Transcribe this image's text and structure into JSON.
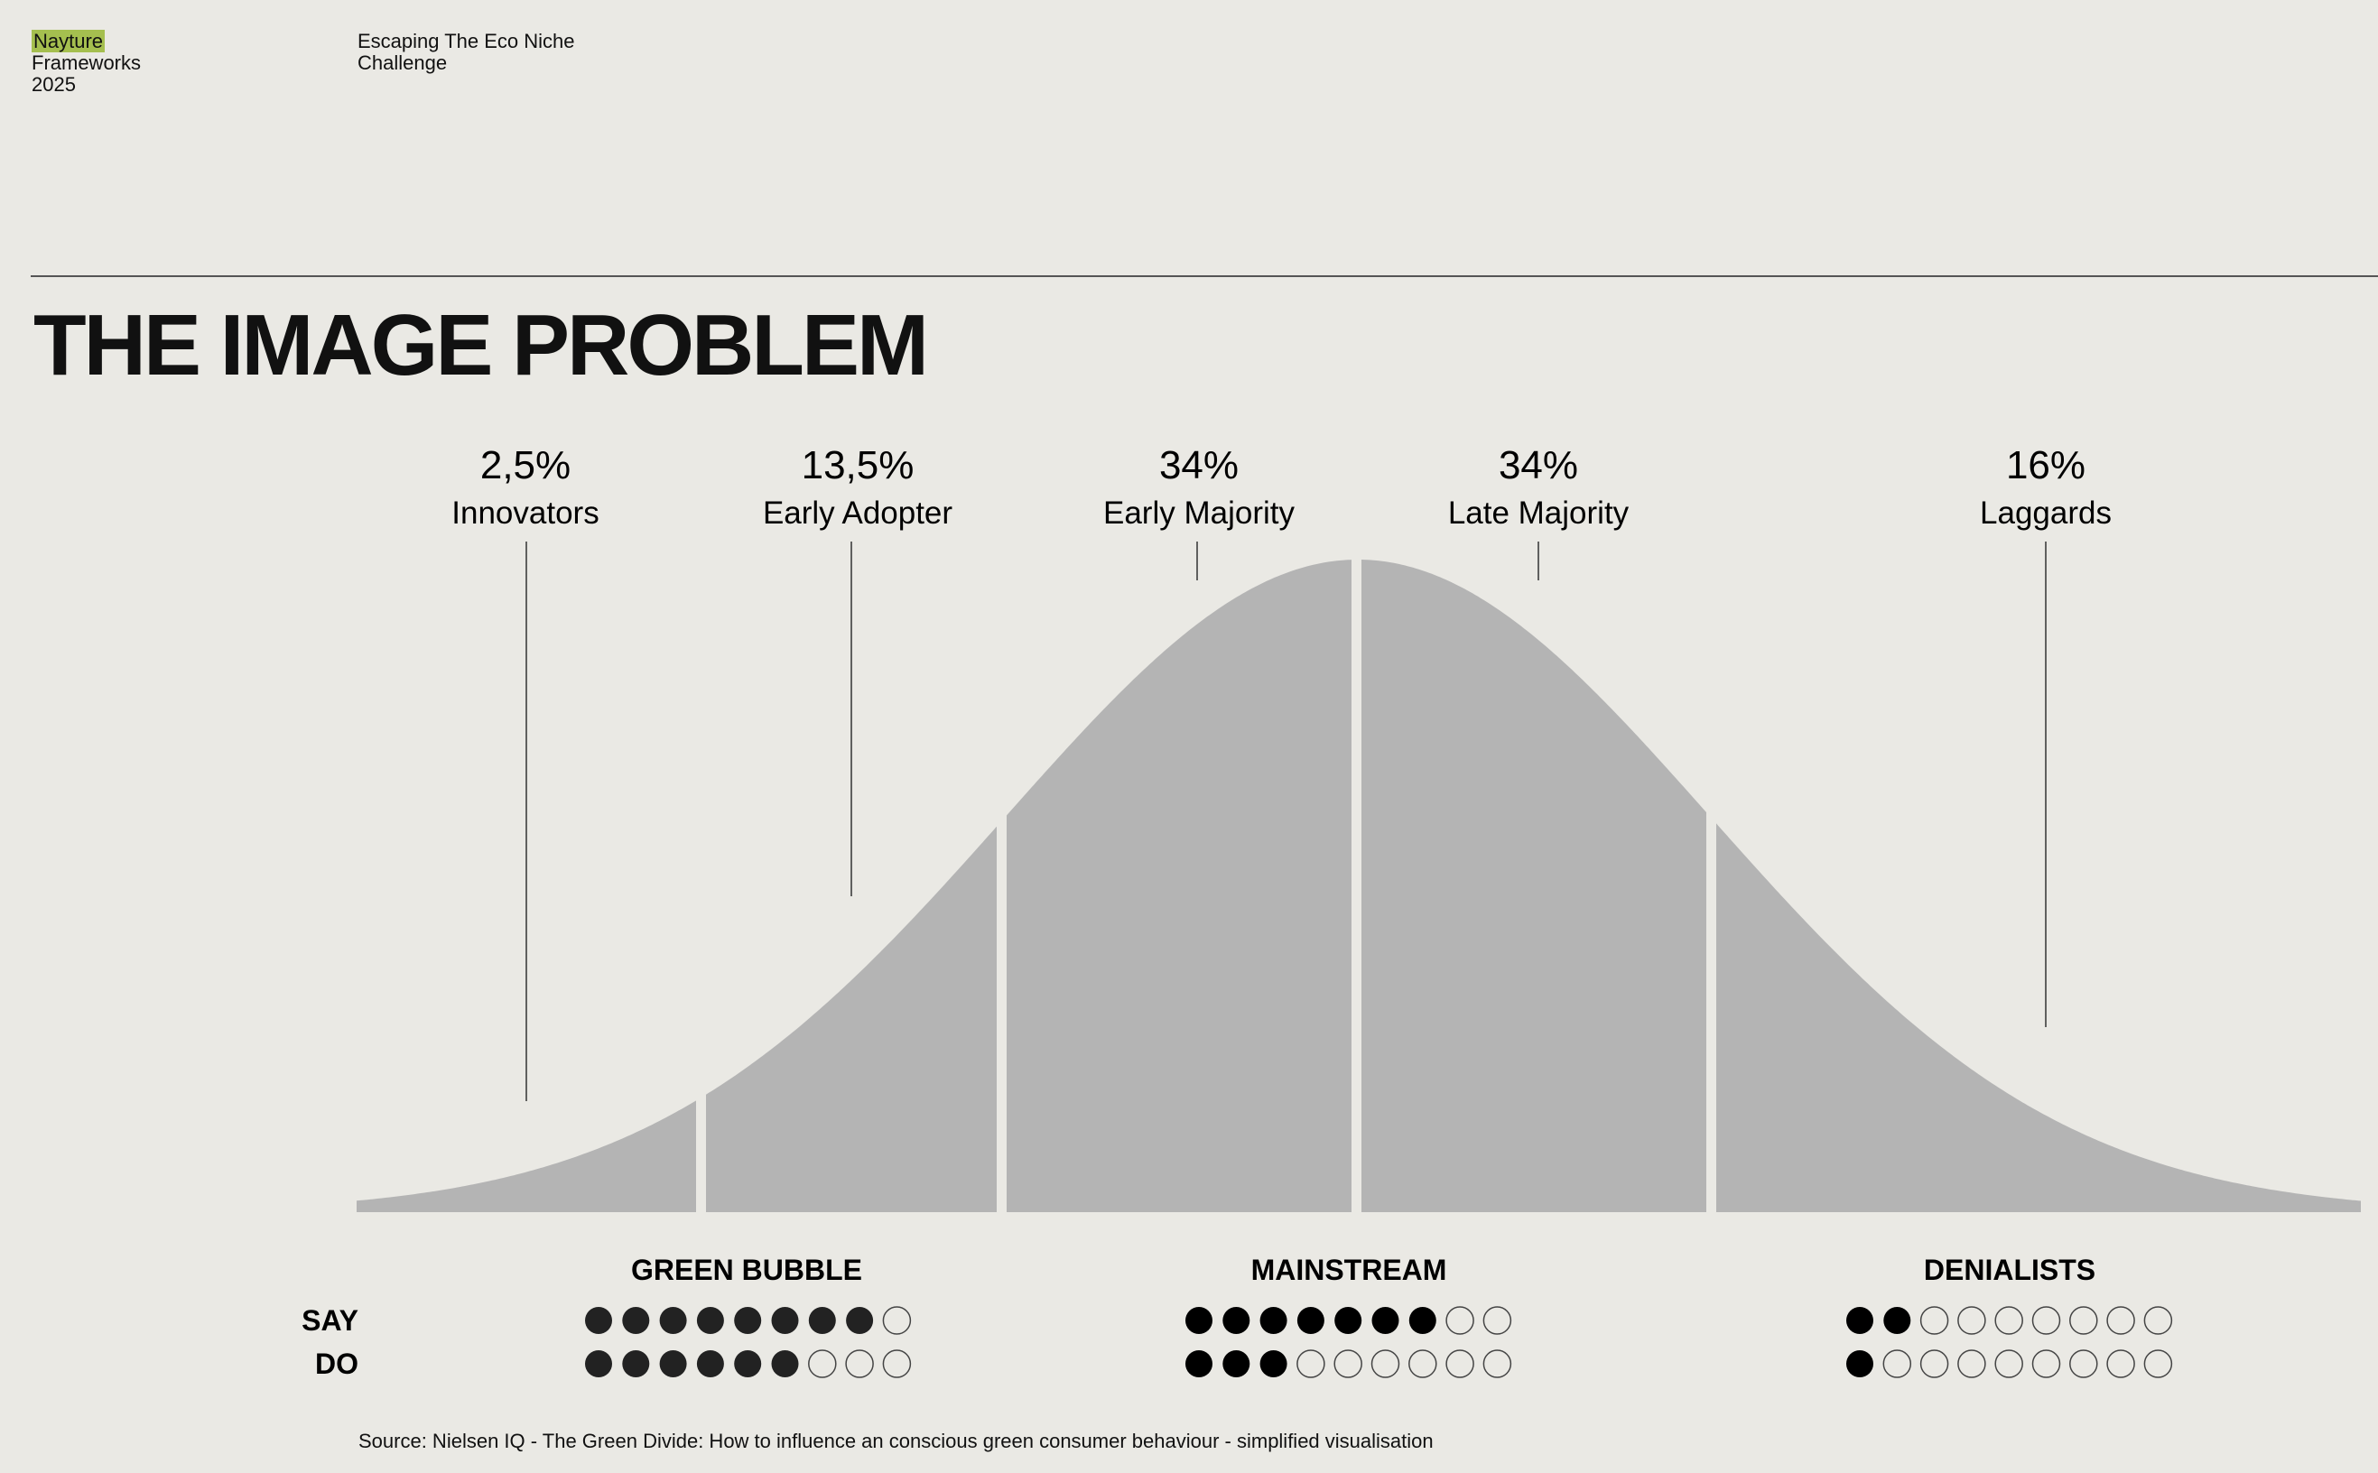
{
  "header": {
    "brand_highlight": "Nayture",
    "brand_line2": "Frameworks",
    "brand_line3": "2025",
    "project_line1": "Escaping The Eco Niche",
    "project_line2": "Challenge",
    "accent_color": "#a5bf4f"
  },
  "title": "THE IMAGE PROBLEM",
  "segments": [
    {
      "percent": "2,5%",
      "label": "Innovators"
    },
    {
      "percent": "13,5%",
      "label": "Early Adopter"
    },
    {
      "percent": "34%",
      "label": "Early Majority"
    },
    {
      "percent": "34%",
      "label": "Late Majority"
    },
    {
      "percent": "16%",
      "label": "Laggards"
    }
  ],
  "curve_color": "#b4b4b4",
  "row_labels": {
    "say": "SAY",
    "do": "DO"
  },
  "groups": [
    {
      "title": "GREEN BUBBLE",
      "say": 8,
      "do": 6,
      "total": 9
    },
    {
      "title": "MAINSTREAM",
      "say": 7,
      "do": 3,
      "total": 9
    },
    {
      "title": "DENIALISTS",
      "say": 2,
      "do": 1,
      "total": 9
    }
  ],
  "source": "Source: Nielsen IQ - The Green Divide: How to influence an conscious green consumer behaviour - simplified visualisation"
}
